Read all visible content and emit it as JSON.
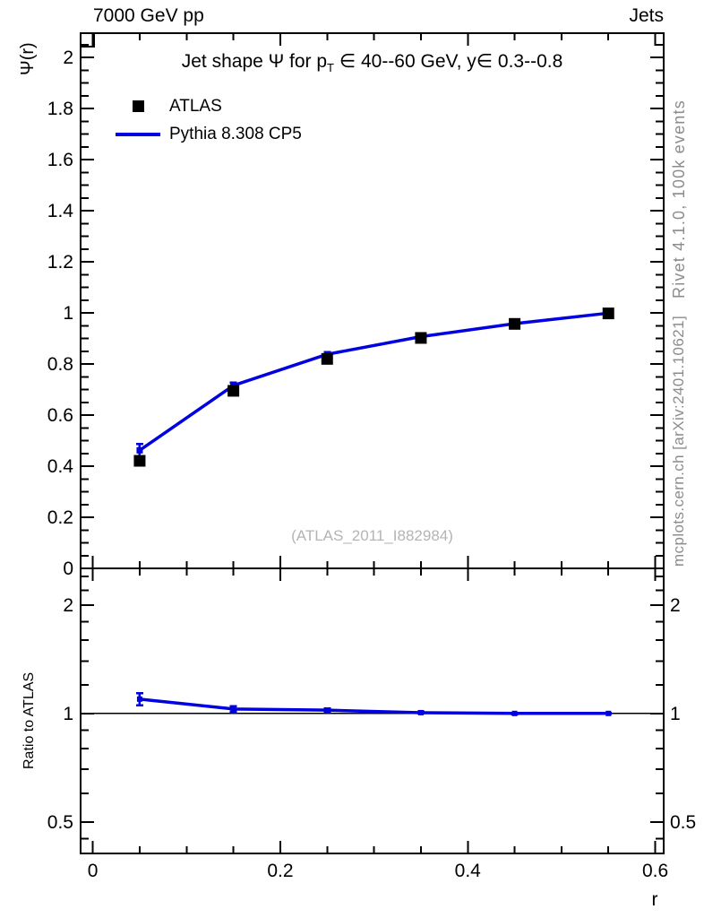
{
  "header": {
    "left": "7000 GeV pp",
    "right": "Jets"
  },
  "title": {
    "pre": "Jet shape Ψ for p",
    "sub": "T",
    "post": " ∈ 40--60 GeV, y∈ 0.3--0.8"
  },
  "legend": [
    {
      "label": "ATLAS",
      "swatch": "black-square-marker",
      "color": "#000000"
    },
    {
      "label": "Pythia 8.308 CP5",
      "swatch": "blue-line",
      "color": "#0000e0"
    }
  ],
  "watermark": "(ATLAS_2011_I882984)",
  "side_texts": {
    "top_right": "Rivet 4.1.0,  100k events",
    "mid_right": "mcplots.cern.ch [arXiv:2401.10621]"
  },
  "axis_labels": {
    "main_y": "Ψ(r)",
    "ratio_y": "Ratio to ATLAS",
    "x": "r"
  },
  "colors": {
    "mc_line": "#0000e0",
    "data_marker": "#000000",
    "axis": "#000000",
    "gray_text": "#8c8c8c",
    "watermark": "#b4b4b4"
  },
  "chart_data": [
    {
      "id": "main",
      "type": "line",
      "title": "Jet shape Ψ for p_T ∈ 40--60 GeV, y∈ 0.3--0.8",
      "xlabel": "r",
      "ylabel": "Ψ(r)",
      "xlim": [
        -0.013,
        0.609
      ],
      "ylim": [
        0,
        2.095
      ],
      "grid": false,
      "legend_position": "top-left",
      "x": [
        0.05,
        0.15,
        0.25,
        0.35,
        0.45,
        0.55
      ],
      "series": [
        {
          "name": "ATLAS",
          "style": "marker",
          "marker": "square",
          "color": "#000000",
          "values": [
            0.421,
            0.695,
            0.82,
            0.902,
            0.957,
            0.998
          ]
        },
        {
          "name": "Pythia 8.308 CP5",
          "style": "line+marker",
          "color": "#0000e0",
          "values": [
            0.462,
            0.716,
            0.838,
            0.907,
            0.958,
            0.999
          ],
          "errors": [
            0.025,
            0.012,
            0.008,
            0.005,
            0.004,
            0.003
          ]
        }
      ],
      "yticks": {
        "major": [
          0,
          0.2,
          0.4,
          0.6,
          0.8,
          1,
          1.2,
          1.4,
          1.6,
          1.8,
          2
        ],
        "labels": [
          "0",
          "0.2",
          "0.4",
          "0.6",
          "0.8",
          "1",
          "1.2",
          "1.4",
          "1.6",
          "1.8",
          "2"
        ],
        "minor_step": 0.05
      },
      "xticks": {
        "major": [
          0,
          0.2,
          0.4,
          0.6
        ],
        "labels": [
          "0",
          "0.2",
          "0.4",
          "0.6"
        ],
        "minor_step": 0.05
      }
    },
    {
      "id": "ratio",
      "type": "line",
      "ylabel": "Ratio to ATLAS",
      "yscale": "log",
      "ylim": [
        0.409,
        2.53
      ],
      "ref_line": 1.0,
      "x": [
        0.05,
        0.15,
        0.25,
        0.35,
        0.45,
        0.55
      ],
      "series": [
        {
          "name": "Pythia 8.308 CP5 / ATLAS",
          "style": "line+marker",
          "color": "#0000e0",
          "values": [
            1.097,
            1.03,
            1.022,
            1.006,
            1.001,
            1.001
          ],
          "errors": [
            0.042,
            0.018,
            0.01,
            0.006,
            0.004,
            0.003
          ]
        }
      ],
      "yticks": {
        "major": [
          0.5,
          1,
          2
        ],
        "labels": [
          "0.5",
          "1",
          "2"
        ],
        "minor": [
          0.45,
          0.6,
          0.7,
          0.8,
          0.9,
          1.2,
          1.4,
          1.6,
          1.8,
          2.2,
          2.4
        ]
      },
      "xticks": {
        "major": [
          0,
          0.2,
          0.4,
          0.6
        ],
        "labels": [
          "0",
          "0.2",
          "0.4",
          "0.6"
        ],
        "minor_step": 0.05
      }
    }
  ]
}
